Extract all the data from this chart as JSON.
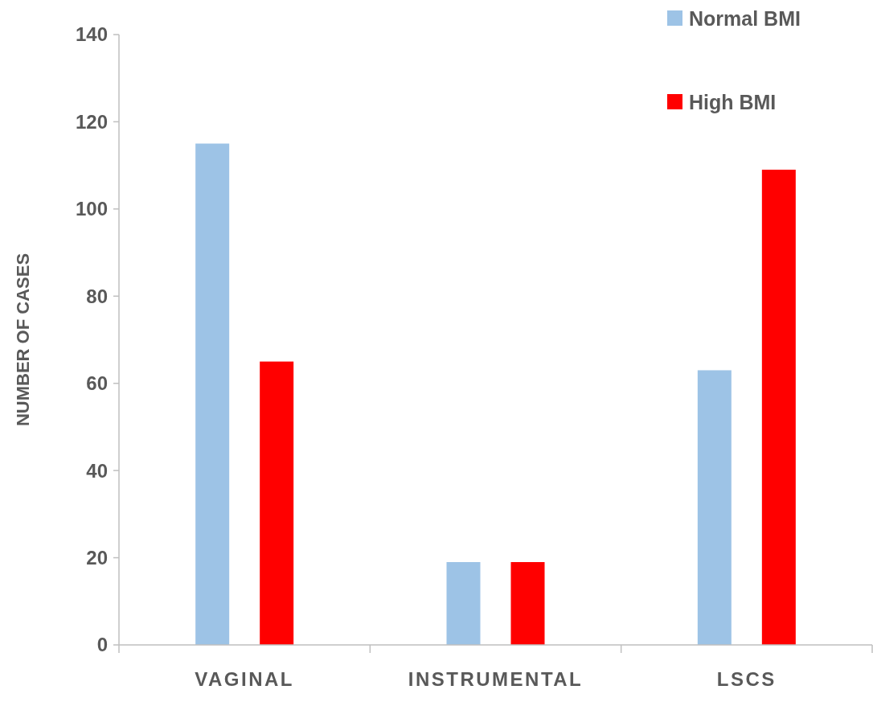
{
  "chart_data": {
    "type": "bar",
    "ylabel": "NUMBER OF CASES",
    "categories": [
      "VAGINAL",
      "INSTRUMENTAL",
      "LSCS"
    ],
    "series": [
      {
        "name": "Normal BMI",
        "color": "#9dc3e6",
        "values": [
          115,
          19,
          63
        ]
      },
      {
        "name": "High BMI",
        "color": "#ff0000",
        "values": [
          65,
          19,
          109
        ]
      }
    ],
    "ylim": [
      0,
      140
    ],
    "yticks": [
      0,
      20,
      40,
      60,
      80,
      100,
      120,
      140
    ],
    "grid": false,
    "legend": "top right"
  }
}
